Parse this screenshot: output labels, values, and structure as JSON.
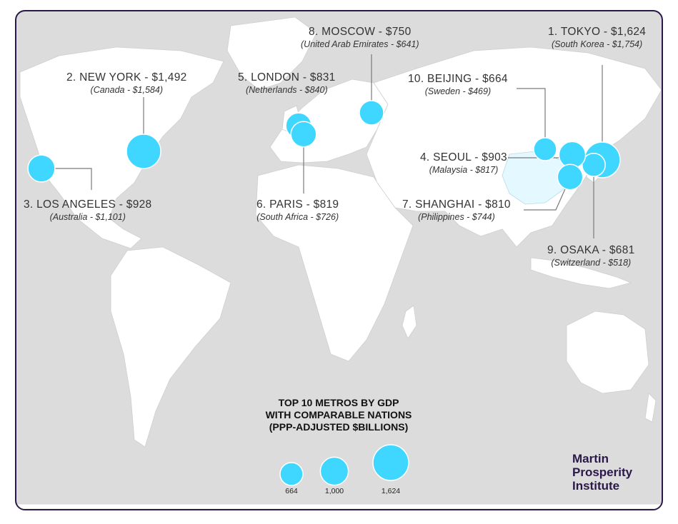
{
  "map": {
    "colors": {
      "ocean": "#dcdcdc",
      "land": "#ffffff",
      "bubble": "#3fd7ff",
      "highlight": "#e3f8ff",
      "brand": "#2a1848"
    },
    "cities": [
      {
        "rank": 1,
        "title": "1. TOKYO - $1,624",
        "comparison": "(South Korea - $1,754)",
        "gdp": 1624
      },
      {
        "rank": 2,
        "title": "2. NEW YORK - $1,492",
        "comparison": "(Canada - $1,584)",
        "gdp": 1492
      },
      {
        "rank": 3,
        "title": "3. LOS ANGELES - $928",
        "comparison": "(Australia - $1,101)",
        "gdp": 928
      },
      {
        "rank": 4,
        "title": "4. SEOUL - $903",
        "comparison": "(Malaysia - $817)",
        "gdp": 903
      },
      {
        "rank": 5,
        "title": "5. LONDON - $831",
        "comparison": "(Netherlands - $840)",
        "gdp": 831
      },
      {
        "rank": 6,
        "title": "6. PARIS - $819",
        "comparison": "(South Africa - $726)",
        "gdp": 819
      },
      {
        "rank": 7,
        "title": "7. SHANGHAI - $810",
        "comparison": "(Philippines - $744)",
        "gdp": 810
      },
      {
        "rank": 8,
        "title": "8. MOSCOW - $750",
        "comparison": "(United Arab Emirates - $641)",
        "gdp": 750
      },
      {
        "rank": 9,
        "title": "9. OSAKA - $681",
        "comparison": "(Switzerland - $518)",
        "gdp": 681
      },
      {
        "rank": 10,
        "title": "10. BEIJING - $664",
        "comparison": "(Sweden - $469)",
        "gdp": 664
      }
    ]
  },
  "legend": {
    "title_lines": [
      "TOP 10 METROS BY GDP",
      "WITH COMPARABLE NATIONS",
      "(PPP-ADJUSTED $BILLIONS)"
    ],
    "items": [
      {
        "label": "664",
        "value": 664
      },
      {
        "label": "1,000",
        "value": 1000
      },
      {
        "label": "1,624",
        "value": 1624
      }
    ]
  },
  "brand": {
    "lines": [
      "Martin",
      "Prosperity",
      "Institute"
    ]
  }
}
